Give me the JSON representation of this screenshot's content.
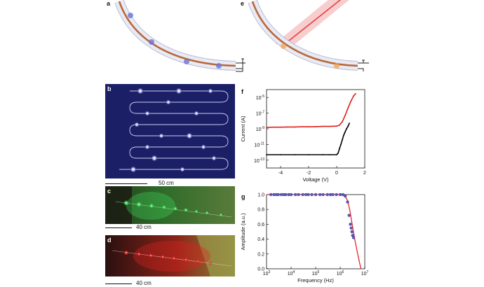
{
  "panels": {
    "a": "a",
    "b": "b",
    "c": "c",
    "d": "d",
    "e": "e",
    "f": "f",
    "g": "g"
  },
  "scalebars": {
    "b": "50 cm",
    "c": "40 cm",
    "d": "40 cm"
  },
  "colors": {
    "fibre_core": "#b9673a",
    "fibre_cladding": "#dfe3f0",
    "emission_blue": "#6a74d8",
    "emission_orange": "#f2a24a",
    "laser_red": "#e43b3b",
    "photo_blue_bg": "#161a5a",
    "photo_green": "#3fd65a",
    "photo_red": "#e3231f",
    "curve_red": "#e0201a",
    "curve_black": "#000000",
    "amp_points": "#5b56b8",
    "amp_fit": "#e02a2a"
  },
  "chart_data": [
    {
      "id": "f",
      "type": "line",
      "xlabel": "Voltage (V)",
      "ylabel": "Current (A)",
      "xlim": [
        -5,
        2
      ],
      "ylim": [
        1e-14,
        0.0001
      ],
      "yscale": "log",
      "xticks": [
        "-4",
        "-2",
        "0",
        "2"
      ],
      "yticks": [
        "10^-13",
        "10^-11",
        "10^-9",
        "10^-7",
        "10^-5"
      ],
      "series": [
        {
          "color": "#e0201a",
          "x": [
            -5,
            -4.5,
            -4,
            -3.5,
            -3,
            -2.5,
            -2,
            -1.5,
            -1,
            -0.5,
            0,
            0.2,
            0.4,
            0.6,
            0.8,
            1.0,
            1.2,
            1.35
          ],
          "y": [
            1.5e-09,
            1.6e-09,
            1.6e-09,
            1.7e-09,
            1.7e-09,
            1.8e-09,
            1.8e-09,
            1.9e-09,
            2e-09,
            2e-09,
            2.2e-09,
            3e-09,
            8e-09,
            5e-08,
            4e-07,
            3e-06,
            1.5e-05,
            3e-05
          ]
        },
        {
          "color": "#000000",
          "x": [
            -5,
            -4,
            -3,
            -2,
            -1,
            -0.5,
            0,
            0.1,
            0.2,
            0.3,
            0.4,
            0.5,
            0.6,
            0.7,
            0.8,
            0.9
          ],
          "y": [
            5e-13,
            5e-13,
            5e-13,
            5e-13,
            5e-13,
            5e-13,
            5e-13,
            8e-13,
            3e-12,
            1e-11,
            4e-11,
            1.5e-10,
            4e-10,
            1e-09,
            2e-09,
            5e-09
          ]
        }
      ]
    },
    {
      "id": "g",
      "type": "scatter",
      "xlabel": "Frequency (Hz)",
      "ylabel": "Amplitude (a.u.)",
      "xlim": [
        1000,
        10000000
      ],
      "ylim": [
        0,
        1.0
      ],
      "xscale": "log",
      "xticks": [
        "10^3",
        "10^4",
        "10^5",
        "10^6",
        "10^7"
      ],
      "yticks": [
        "0.0",
        "0.2",
        "0.4",
        "0.6",
        "0.8",
        "1.0"
      ],
      "points": {
        "x": [
          1500,
          2000,
          2500,
          3000,
          4000,
          5000,
          6000,
          8000,
          10000,
          15000,
          20000,
          30000,
          40000,
          50000,
          70000,
          100000,
          150000,
          200000,
          300000,
          400000,
          500000,
          700000,
          1000000,
          1300000,
          1600000,
          2000000,
          2300000,
          2600000,
          2800000,
          3000000,
          3200000,
          3500000
        ],
        "y": [
          1.0,
          1.0,
          1.0,
          1.0,
          1.0,
          1.0,
          1.0,
          1.0,
          1.0,
          1.0,
          1.0,
          1.0,
          1.0,
          1.0,
          1.0,
          1.0,
          1.0,
          1.0,
          1.0,
          1.0,
          1.0,
          1.0,
          1.0,
          1.0,
          0.98,
          0.9,
          0.72,
          0.6,
          0.55,
          0.5,
          0.45,
          0.42
        ]
      },
      "fit": {
        "x": [
          1000,
          100000,
          1000000,
          1500000,
          2000000,
          2500000,
          3000000,
          4000000,
          5000000,
          6000000,
          7000000
        ],
        "y": [
          1.0,
          1.0,
          1.0,
          0.99,
          0.92,
          0.78,
          0.62,
          0.38,
          0.22,
          0.1,
          0.0
        ]
      }
    }
  ]
}
